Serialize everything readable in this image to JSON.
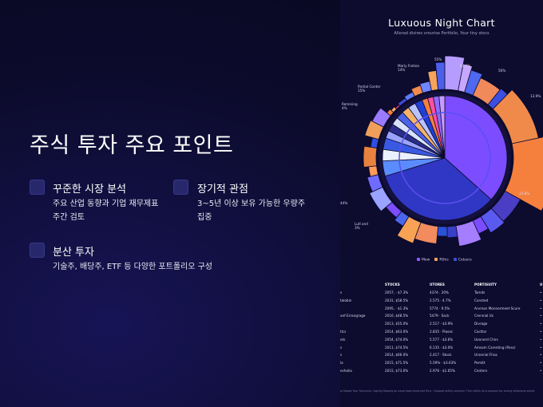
{
  "slide": {
    "title": "주식 투자 주요 포인트",
    "points": [
      {
        "heading": "꾸준한 시장 분석",
        "lines": [
          "주요 산업 동향과 기업 재무제표",
          "주간 검토"
        ]
      },
      {
        "heading": "장기적 관점",
        "lines": [
          "3~5년 이상 보유 가능한 우량주",
          "집중"
        ]
      },
      {
        "heading": "분산 투자",
        "lines": [
          "기술주, 배당주, ETF 등 다양한 포트폴리오 구성"
        ]
      }
    ]
  },
  "panel": {
    "title": "Luxuous Night Chart",
    "subtitle": "Allorad divires vrourise Portfolio, Your tiny stocs",
    "legend": [
      {
        "label": "Mew",
        "color": "#8b5cf6"
      },
      {
        "label": "Rthis",
        "color": "#f6a35c"
      },
      {
        "label": "Cetsers",
        "color": "#3b4fd8"
      }
    ],
    "table": {
      "headers": [
        "",
        "STOCKS",
        "UTORES",
        "PORTISUITY",
        "U"
      ],
      "rows": [
        [
          "s",
          "2057, · $7.3%",
          "4374·. 20%",
          "Tamds",
          "•"
        ],
        [
          "talobin",
          "2031, $58.5%",
          "2.575 · 4.7%",
          "Consted",
          "•"
        ],
        [
          "",
          "2095, · $1.3%",
          "5774 · 9.5%",
          "Arvman Monnormeet Scure",
          "•"
        ],
        [
          "anf Errangrage",
          "2016, $48.5%",
          "5479 · Sack",
          "Crennial Us",
          "•"
        ],
        [
          "",
          "2013, $55.0%",
          "2.517 · $3.9%",
          "Divrage",
          "•"
        ],
        [
          "tlcs",
          "2014, $63.0%",
          "2.835 · Piasec",
          "Cacttar",
          "•"
        ],
        [
          "ets",
          "2054, $74.0%",
          "5.577 · $3.6%",
          "Uonnerd Chirs",
          "•"
        ],
        [
          "s",
          "2011, $74.5%",
          "6.135 · $3.0%",
          "Amsom Carenting (Poss)",
          "•"
        ],
        [
          "s",
          "2014, $66.0%",
          "2.417 · Stock",
          "Unnerial Fliva",
          "•"
        ],
        [
          "la",
          "2015, $71.5%",
          "5.59% · $3.63%",
          "Pemitt",
          "•"
        ],
        [
          "echolio",
          "2015, $73.0%",
          "2.976 · $1.65%",
          "Centers",
          "•"
        ]
      ]
    },
    "footnote": "ar Notsor Your Schusnim. Coprtig Stoorng an novar bearrimng and Ms a : Quaoad velinly sorseme. Ther within its is polovari tor ancing rettortone sorroll."
  },
  "chart_data": {
    "type": "pie",
    "title": "Luxuous Night Chart",
    "inner_ring": {
      "values": [
        37,
        34,
        4,
        3,
        3,
        2,
        2,
        2,
        2,
        2,
        2,
        2,
        1.5,
        1.5,
        1.5,
        1.5
      ],
      "colors": [
        "#7c4dff",
        "#3037c4",
        "#5b8cff",
        "#eaf0ff",
        "#3a59e3",
        "#9aa3ff",
        "#2a2e8a",
        "#d8e2ff",
        "#4b63e8",
        "#f6b26b",
        "#b9c3ff",
        "#1f3fd6",
        "#f5803e",
        "#ff4fa0",
        "#8e6cff",
        "#c89bff"
      ]
    },
    "outer_ring": {
      "values": [
        3,
        1.5,
        2,
        4,
        1.5,
        9,
        11,
        5,
        3,
        2,
        4,
        2,
        2,
        4,
        3,
        2,
        3,
        4,
        3,
        2,
        4,
        2,
        3,
        3,
        1,
        1,
        1,
        2,
        2,
        2,
        2,
        1.5,
        1.5
      ],
      "colors": [
        "#b79cff",
        "#c7a7ff",
        "#4e68f0",
        "#f08a5b",
        "#3d4fe0",
        "#f08a4b",
        "#f5803e",
        "#4a3ec4",
        "#5a59f0",
        "#7c4dff",
        "#a57dff",
        "#3a3fc9",
        "#2b51d8",
        "#f28b5e",
        "#f7a255",
        "#4a66ef",
        "#7c4dff",
        "#9aa3ff",
        "#6f6bff",
        "#ff9a58",
        "#e9823e",
        "#2f4fe0",
        "#f09f5b",
        "#9a7bff",
        "#f5803e",
        "#ffb15c",
        "#ff4d7a",
        "#3e4bd6",
        "#5b7cff",
        "#f08a4b",
        "#6f86ff",
        "#f6a35c",
        "#4b5fea"
      ]
    },
    "labels": [
      "Marly Frotion 14%",
      "Partial Conter 15%",
      "Remining 4%",
      "Lutl and 3%",
      "55%",
      "63.6%",
      "50%",
      "13.9%",
      "33.8%",
      "44%"
    ]
  }
}
